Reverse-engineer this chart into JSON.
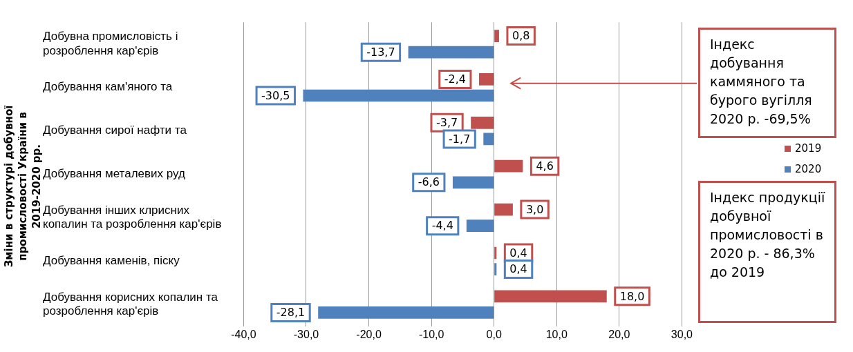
{
  "chart_data": {
    "type": "bar",
    "orientation": "horizontal",
    "ylabel": "Зміни в структурі добувної промисловості України в 2019-2020 рр.",
    "categories": [
      "Добувна промисловість і розроблення кар'єрів",
      "Добування кам'яного та",
      "Добування сирої нафти та",
      "Добування металевих руд",
      "Добування інших клрисних копалин та розроблення кар'єрів",
      "Добування каменів, піску",
      "Добування корисних копалин та розроблення кар'єрів"
    ],
    "series": [
      {
        "name": "2019",
        "color": "#c0504d",
        "values": [
          0.8,
          -2.4,
          -3.7,
          4.6,
          3.0,
          0.4,
          18.0
        ],
        "value_labels": [
          "0,8",
          "-2,4",
          "-3,7",
          "4,6",
          "3,0",
          "0,4",
          "18,0"
        ]
      },
      {
        "name": "2020",
        "color": "#4f81bd",
        "values": [
          -13.7,
          -30.5,
          -1.7,
          -6.6,
          -4.4,
          0.4,
          -28.1
        ],
        "value_labels": [
          "-13,7",
          "-30,5",
          "-1,7",
          "-6,6",
          "-4,4",
          "0,4",
          "-28,1"
        ]
      }
    ],
    "xlim": [
      -40,
      30
    ],
    "xticks": [
      {
        "value": -40,
        "label": "-40,0"
      },
      {
        "value": -30,
        "label": "-30,0"
      },
      {
        "value": -20,
        "label": "-20,0"
      },
      {
        "value": -10,
        "label": "-10,0"
      },
      {
        "value": 0,
        "label": "0,0"
      },
      {
        "value": 10,
        "label": "10,0"
      },
      {
        "value": 20,
        "label": "20,0"
      },
      {
        "value": 30,
        "label": "30,0"
      }
    ],
    "grid": "x",
    "legend": "right",
    "annotations": [
      "Індекс добування каммяного та бурого вугілля 2020 р. -69,5%",
      "Індекс продукції добувної промисловості в 2020 р. - 86,3% до 2019"
    ]
  }
}
